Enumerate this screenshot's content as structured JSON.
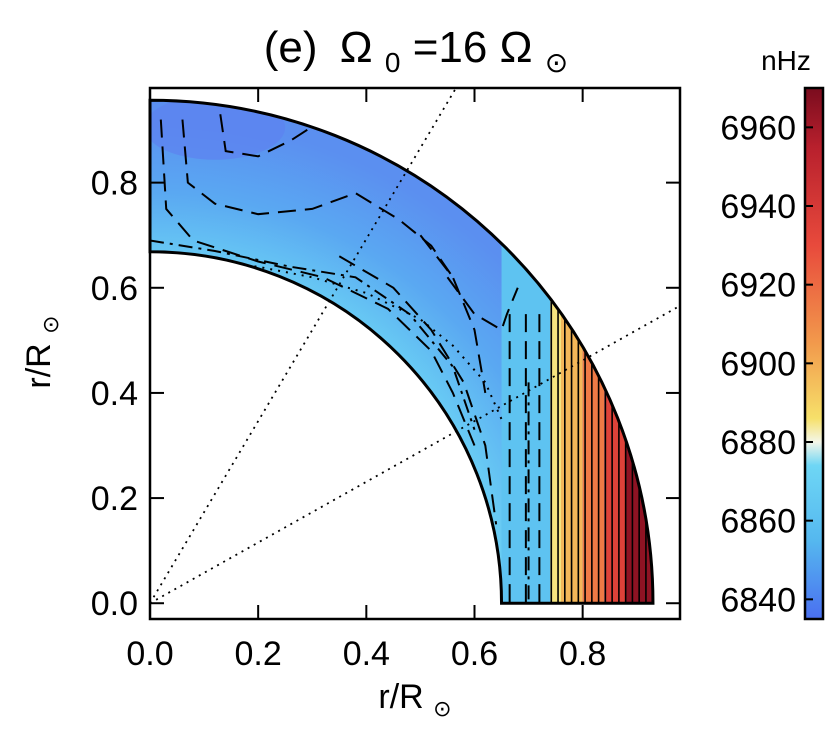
{
  "chart_data": {
    "type": "heatmap",
    "title_prefix": "(e)",
    "title_symbol": "Ω",
    "title_subscript": "0",
    "title_equals": "=16",
    "title_sun_symbol": "⊙",
    "xlabel_main": "r/R",
    "ylabel_main": "r/R",
    "sun_symbol": "⊙",
    "xlim": [
      0.0,
      0.98
    ],
    "ylim": [
      -0.03,
      0.98
    ],
    "x_ticks": [
      {
        "value": 0.0,
        "label": "0.0"
      },
      {
        "value": 0.2,
        "label": "0.2"
      },
      {
        "value": 0.4,
        "label": "0.4"
      },
      {
        "value": 0.6,
        "label": "0.6"
      },
      {
        "value": 0.8,
        "label": "0.8"
      }
    ],
    "y_ticks": [
      {
        "value": 0.0,
        "label": "0.0"
      },
      {
        "value": 0.2,
        "label": "0.2"
      },
      {
        "value": 0.4,
        "label": "0.4"
      },
      {
        "value": 0.6,
        "label": "0.6"
      },
      {
        "value": 0.8,
        "label": "0.8"
      }
    ],
    "inner_radius": 0.65,
    "outer_radius": 0.93,
    "tangent_cylinder_radius": 0.65,
    "colorbar": {
      "unit": "nHz",
      "min": 6835,
      "max": 6970,
      "ticks": [
        {
          "value": 6840,
          "label": "6840"
        },
        {
          "value": 6860,
          "label": "6860"
        },
        {
          "value": 6880,
          "label": "6880"
        },
        {
          "value": 6900,
          "label": "6900"
        },
        {
          "value": 6920,
          "label": "6920"
        },
        {
          "value": 6940,
          "label": "6940"
        },
        {
          "value": 6960,
          "label": "6960"
        }
      ],
      "stops": [
        {
          "value": 6835,
          "color": "#4a6ff0"
        },
        {
          "value": 6855,
          "color": "#55b8ef"
        },
        {
          "value": 6874,
          "color": "#6ed6f5"
        },
        {
          "value": 6880,
          "color": "#f4f6e8"
        },
        {
          "value": 6886,
          "color": "#f6e06a"
        },
        {
          "value": 6905,
          "color": "#f29a4c"
        },
        {
          "value": 6930,
          "color": "#e84a3c"
        },
        {
          "value": 6955,
          "color": "#b8202d"
        },
        {
          "value": 6970,
          "color": "#7a0c1e"
        }
      ]
    },
    "dotted_guides_latitude_deg": [
      30,
      60
    ],
    "equatorial_bands": [
      {
        "x_from": 0.65,
        "x_to": 0.74,
        "value": 6862
      },
      {
        "x_from": 0.74,
        "x_to": 0.76,
        "value": 6885
      },
      {
        "x_from": 0.76,
        "x_to": 0.8,
        "value": 6897
      },
      {
        "x_from": 0.8,
        "x_to": 0.84,
        "value": 6915
      },
      {
        "x_from": 0.84,
        "x_to": 0.88,
        "value": 6935
      },
      {
        "x_from": 0.88,
        "x_to": 0.935,
        "value": 6965
      }
    ]
  }
}
